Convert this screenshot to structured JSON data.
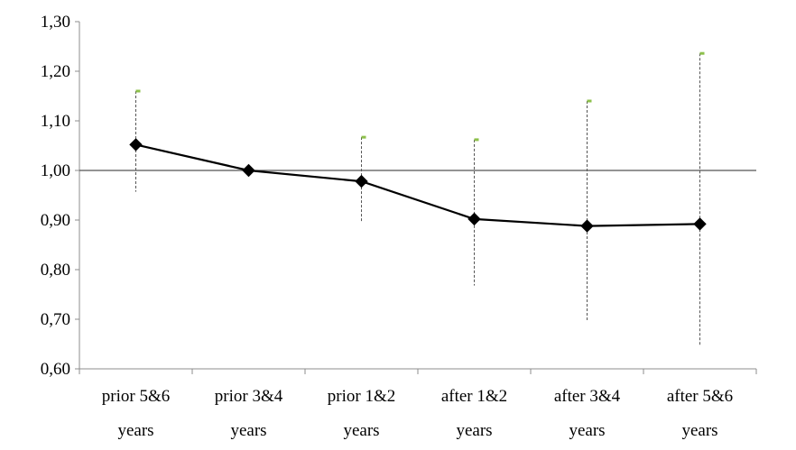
{
  "chart_data": {
    "type": "line",
    "title": "",
    "xlabel": "",
    "ylabel": "",
    "categories": [
      [
        "prior 5&6",
        "years"
      ],
      [
        "prior 3&4",
        "years"
      ],
      [
        "prior 1&2",
        "years"
      ],
      [
        "after 1&2",
        "years"
      ],
      [
        "after 3&4",
        "years"
      ],
      [
        "after 5&6",
        "years"
      ]
    ],
    "series": [
      {
        "values": [
          1.052,
          1.0,
          0.978,
          0.902,
          0.888,
          0.892
        ],
        "ci_lower": [
          0.957,
          1.0,
          0.898,
          0.768,
          0.695,
          0.645
        ],
        "ci_upper": [
          1.16,
          1.0,
          1.067,
          1.062,
          1.14,
          1.236
        ],
        "marker": "diamond",
        "color": "#000000"
      }
    ],
    "ylim": [
      0.6,
      1.3
    ],
    "yticks": [
      "0,60",
      "0,70",
      "0,80",
      "0,90",
      "1,00",
      "1,10",
      "1,20",
      "1,30"
    ],
    "reference_line": 1.0,
    "ci_cap_color": "#8dc04b",
    "grid": false,
    "legend": "none"
  }
}
